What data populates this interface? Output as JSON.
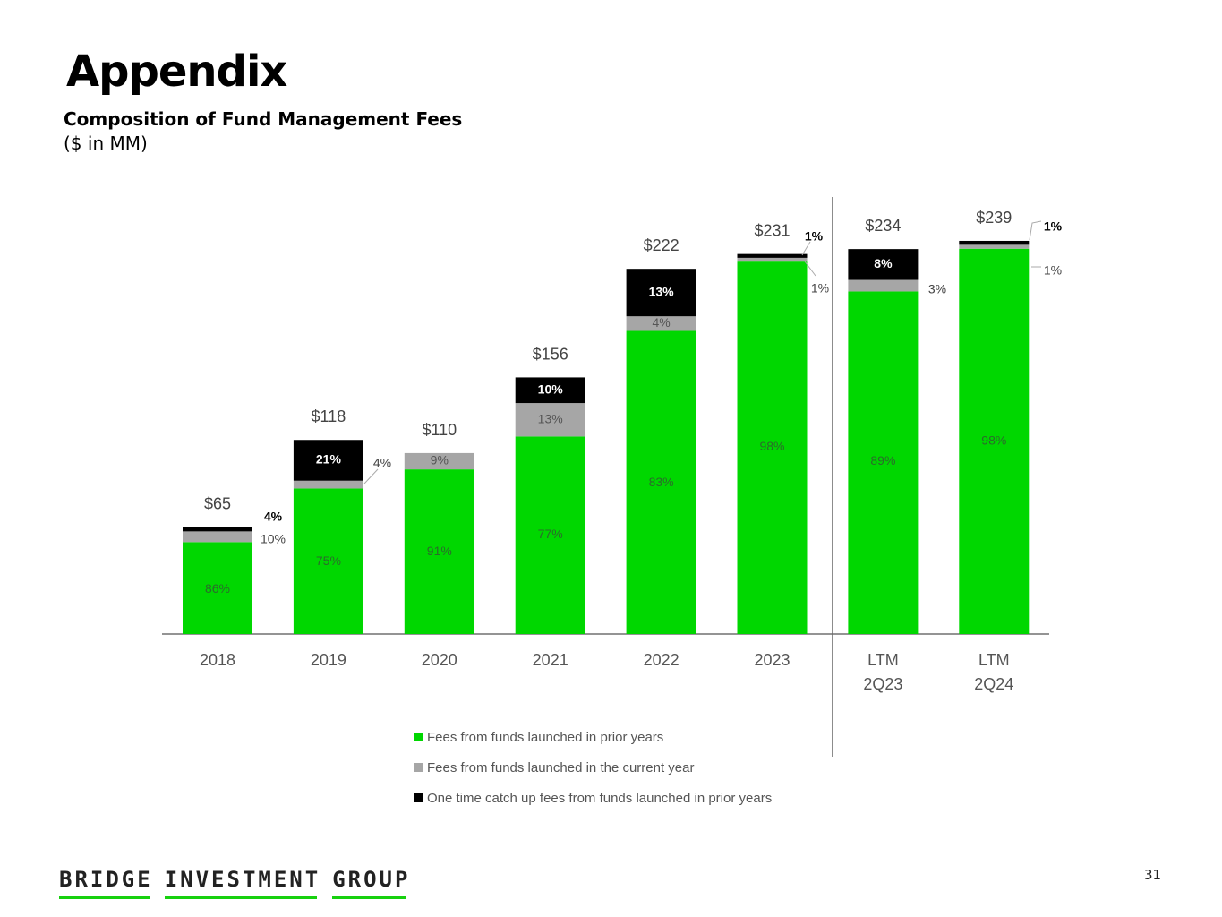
{
  "header": {
    "title": "Appendix",
    "subtitle": "Composition of Fund Management Fees",
    "units": "($ in MM)"
  },
  "chart_data": {
    "type": "bar",
    "stacked": true,
    "title": "Composition of Fund Management Fees",
    "ylabel": "$ in MM",
    "xlabel": "",
    "ylim": [
      0,
      260
    ],
    "grid": false,
    "legend_position": "bottom-center",
    "categories": [
      "2018",
      "2019",
      "2020",
      "2021",
      "2022",
      "2023",
      "LTM 2Q23",
      "LTM 2Q24"
    ],
    "category_lines": [
      [
        "2018"
      ],
      [
        "2019"
      ],
      [
        "2020"
      ],
      [
        "2021"
      ],
      [
        "2022"
      ],
      [
        "2023"
      ],
      [
        "LTM",
        "2Q23"
      ],
      [
        "LTM",
        "2Q24"
      ]
    ],
    "totals": [
      65,
      118,
      110,
      156,
      222,
      231,
      234,
      239
    ],
    "total_labels": [
      "$65",
      "$118",
      "$110",
      "$156",
      "$222",
      "$231",
      "$234",
      "$239"
    ],
    "series": [
      {
        "name": "Fees from funds launched in prior years",
        "color": "#00d700",
        "values_pct": [
          86,
          75,
          91,
          77,
          83,
          98,
          89,
          98
        ],
        "labels": [
          "86%",
          "75%",
          "91%",
          "77%",
          "83%",
          "98%",
          "89%",
          "98%"
        ]
      },
      {
        "name": "Fees from funds launched in the current year",
        "color": "#a6a6a6",
        "values_pct": [
          10,
          4,
          9,
          13,
          4,
          1,
          3,
          1
        ],
        "labels": [
          "10%",
          "4%",
          "9%",
          "13%",
          "4%",
          "1%",
          "3%",
          "1%"
        ]
      },
      {
        "name": "One time catch up fees from funds launched in prior years",
        "color": "#000000",
        "values_pct": [
          4,
          21,
          0,
          10,
          13,
          1,
          8,
          1
        ],
        "labels": [
          "4%",
          "21%",
          "",
          "10%",
          "13%",
          "1%",
          "8%",
          "1%"
        ]
      }
    ],
    "annotations": [
      "Vertical divider separating annual years from LTM periods"
    ]
  },
  "footer": {
    "logo_words": [
      "BRIDGE",
      "INVESTMENT",
      "GROUP"
    ],
    "page_number": "31"
  },
  "colors": {
    "brand_green": "#17d10f",
    "bar_green": "#00d700",
    "bar_gray": "#a6a6a6",
    "bar_black": "#000000"
  }
}
